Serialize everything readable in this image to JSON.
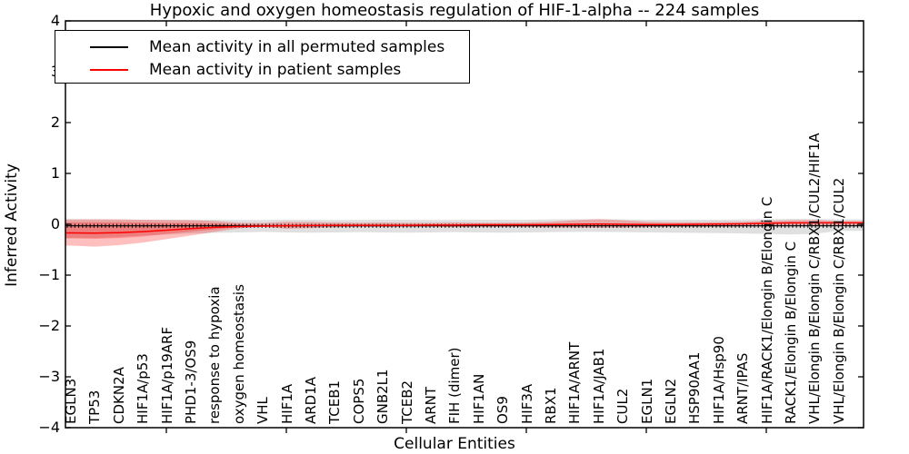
{
  "title": "Hypoxic and oxygen homeostasis regulation of HIF-1-alpha -- 224 samples",
  "legend": {
    "items": [
      {
        "label": "Mean activity in all permuted samples",
        "color": "#000000"
      },
      {
        "label": "Mean activity in patient samples",
        "color": "#ff0000"
      }
    ]
  },
  "axes": {
    "y_label": "Inferred Activity",
    "x_label": "Cellular Entities",
    "y_tick_labels": [
      "4",
      "3",
      "2",
      "1",
      "0",
      "−1",
      "−2",
      "−3",
      "−4"
    ],
    "y_tick_values": [
      4,
      3,
      2,
      1,
      0,
      -1,
      -2,
      -3,
      -4
    ]
  },
  "chart_data": {
    "type": "line",
    "title": "Hypoxic and oxygen homeostasis regulation of HIF-1-alpha -- 224 samples",
    "xlabel": "Cellular Entities",
    "ylabel": "Inferred Activity",
    "ylim": [
      -4,
      4
    ],
    "grid": false,
    "legend_position": "upper left",
    "categories": [
      "EGLN3",
      "TP53",
      "CDKN2A",
      "HIF1A/p53",
      "HIF1A/p19ARF",
      "PHD1-3/OS9",
      "response to hypoxia",
      "oxygen homeostasis",
      "VHL",
      "HIF1A",
      "ARD1A",
      "TCEB1",
      "COPS5",
      "GNB2L1",
      "TCEB2",
      "ARNT",
      "FIH (dimer)",
      "HIF1AN",
      "OS9",
      "HIF3A",
      "RBX1",
      "HIF1A/ARNT",
      "HIF1A/JAB1",
      "CUL2",
      "EGLN1",
      "EGLN2",
      "HSP90AA1",
      "HIF1A/Hsp90",
      "ARNT/IPAS",
      "HIF1A/RACK1/Elongin B/Elongin C",
      "RACK1/Elongin B/Elongin C",
      "VHL/Elongin B/Elongin C/RBX1/CUL2/HIF1A",
      "VHL/Elongin B/Elongin C/RBX1/CUL2"
    ],
    "series": [
      {
        "name": "Mean activity in all permuted samples",
        "color": "#000000",
        "marker": "tick",
        "values": [
          -0.03,
          -0.03,
          -0.03,
          -0.03,
          -0.03,
          -0.03,
          -0.03,
          -0.03,
          -0.03,
          -0.03,
          -0.03,
          -0.03,
          -0.03,
          -0.03,
          -0.03,
          -0.03,
          -0.03,
          -0.03,
          -0.03,
          -0.03,
          -0.03,
          -0.03,
          -0.03,
          -0.03,
          -0.03,
          -0.03,
          -0.03,
          -0.03,
          -0.03,
          -0.03,
          -0.03,
          -0.03,
          -0.03
        ]
      },
      {
        "name": "Mean activity in patient samples",
        "color": "#ff0000",
        "marker": "none",
        "values": [
          -0.17,
          -0.175,
          -0.165,
          -0.145,
          -0.115,
          -0.085,
          -0.06,
          -0.045,
          -0.035,
          -0.03,
          -0.025,
          -0.02,
          -0.02,
          -0.02,
          -0.02,
          -0.015,
          -0.015,
          -0.01,
          -0.01,
          -0.01,
          -0.005,
          0,
          0.005,
          0,
          -0.005,
          -0.005,
          0,
          0.005,
          0.01,
          0.02,
          0.03,
          0.03,
          0.03
        ]
      }
    ],
    "bands": [
      {
        "name": "permuted-samples-range",
        "color": "#999999",
        "opacity": 0.3,
        "upper": [
          0.1,
          0.1,
          0.095,
          0.09,
          0.09,
          0.09,
          0.09,
          0.085,
          0.085,
          0.09,
          0.09,
          0.085,
          0.085,
          0.09,
          0.09,
          0.085,
          0.085,
          0.09,
          0.09,
          0.09,
          0.095,
          0.1,
          0.1,
          0.095,
          0.09,
          0.09,
          0.09,
          0.09,
          0.095,
          0.1,
          0.105,
          0.105,
          0.095
        ],
        "lower": [
          -0.28,
          -0.27,
          -0.25,
          -0.22,
          -0.2,
          -0.18,
          -0.17,
          -0.16,
          -0.15,
          -0.16,
          -0.165,
          -0.16,
          -0.155,
          -0.16,
          -0.165,
          -0.16,
          -0.155,
          -0.16,
          -0.165,
          -0.16,
          -0.155,
          -0.15,
          -0.15,
          -0.155,
          -0.16,
          -0.165,
          -0.17,
          -0.175,
          -0.18,
          -0.19,
          -0.2,
          -0.19,
          -0.13
        ]
      },
      {
        "name": "patient-samples-range-outer",
        "color": "#ff0000",
        "opacity": 0.25,
        "upper": [
          0.095,
          0.095,
          0.095,
          0.09,
          0.085,
          0.08,
          0.065,
          0.03,
          0.025,
          0.05,
          0.045,
          0.035,
          0.03,
          0.035,
          0.03,
          0.03,
          0.035,
          0.03,
          0.03,
          0.035,
          0.05,
          0.08,
          0.1,
          0.08,
          0.05,
          0.04,
          0.04,
          0.045,
          0.05,
          0.07,
          0.08,
          0.085,
          0.065
        ],
        "lower": [
          -0.42,
          -0.44,
          -0.41,
          -0.36,
          -0.29,
          -0.22,
          -0.15,
          -0.08,
          -0.05,
          -0.09,
          -0.075,
          -0.06,
          -0.05,
          -0.055,
          -0.05,
          -0.05,
          -0.055,
          -0.05,
          -0.05,
          -0.05,
          -0.06,
          -0.065,
          -0.07,
          -0.065,
          -0.055,
          -0.05,
          -0.05,
          -0.05,
          -0.045,
          -0.04,
          -0.04,
          -0.035,
          -0.03
        ]
      },
      {
        "name": "patient-samples-range-inner",
        "color": "#ff0000",
        "opacity": 0.25,
        "upper": [
          0.04,
          0.04,
          0.04,
          0.035,
          0.03,
          0.025,
          0.015,
          0,
          -0.01,
          0,
          -0.005,
          -0.01,
          -0.01,
          -0.01,
          -0.01,
          -0.01,
          -0.01,
          -0.005,
          -0.005,
          -0.005,
          0,
          0.01,
          0.015,
          0.01,
          0,
          0,
          0,
          0.005,
          0.01,
          0.015,
          0.02,
          0.02,
          0.02
        ],
        "lower": [
          -0.27,
          -0.285,
          -0.27,
          -0.24,
          -0.19,
          -0.145,
          -0.1,
          -0.055,
          -0.035,
          -0.05,
          -0.04,
          -0.03,
          -0.03,
          -0.03,
          -0.03,
          -0.025,
          -0.025,
          -0.02,
          -0.02,
          -0.02,
          -0.015,
          -0.01,
          -0.01,
          -0.01,
          -0.015,
          -0.015,
          -0.01,
          -0.005,
          0,
          0.005,
          0.01,
          0.015,
          0.015
        ]
      }
    ]
  }
}
